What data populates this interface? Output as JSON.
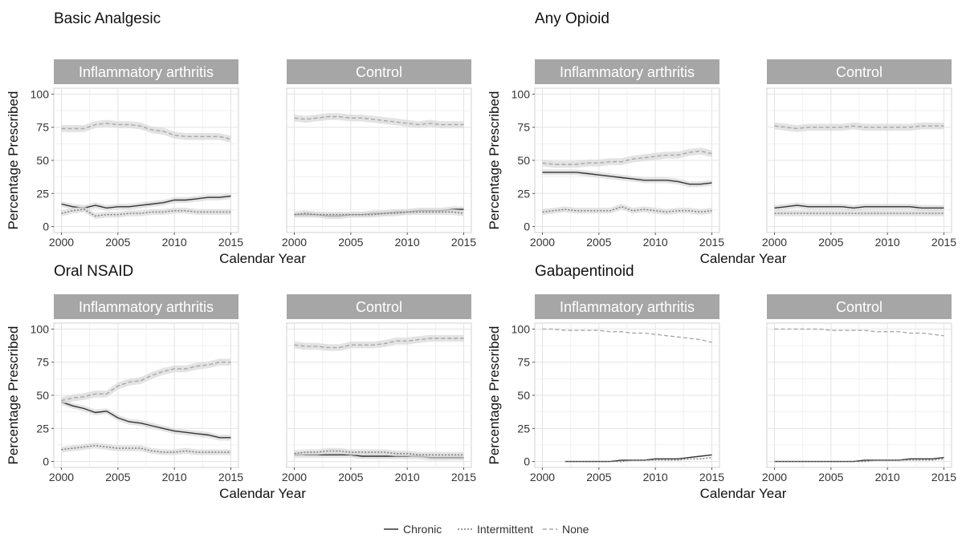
{
  "figure": {
    "ylabel": "Percentage Prescribed",
    "xlabel": "Calendar Year",
    "strip_labels": [
      "Inflammatory arthritis",
      "Control"
    ],
    "legend": [
      {
        "name": "Chronic",
        "style": "solid",
        "color": "#333333"
      },
      {
        "name": "Intermittent",
        "style": "dotted",
        "color": "#7a7a7a"
      },
      {
        "name": "None",
        "style": "dashed",
        "color": "#a8a8a8"
      }
    ],
    "colors": {
      "strip_bg": "#a6a6a6",
      "strip_text": "#ffffff",
      "grid": "#e3e3e3",
      "ribbon": "#d9d9d9"
    }
  },
  "chart_data": [
    {
      "title": "Basic Analgesic",
      "type": "line",
      "xlim": [
        2000,
        2015
      ],
      "ylim": [
        0,
        100
      ],
      "x_ticks": [
        2000,
        2005,
        2010,
        2015
      ],
      "y_ticks": [
        0,
        25,
        50,
        75,
        100
      ],
      "facets": [
        {
          "label": "Inflammatory arthritis",
          "x": [
            2000,
            2001,
            2002,
            2003,
            2004,
            2005,
            2006,
            2007,
            2008,
            2009,
            2010,
            2011,
            2012,
            2013,
            2014,
            2015
          ],
          "series": [
            {
              "name": "Chronic",
              "values": [
                17,
                15,
                14,
                16,
                14,
                15,
                15,
                16,
                17,
                18,
                20,
                20,
                21,
                22,
                22,
                23
              ]
            },
            {
              "name": "Intermittent",
              "values": [
                10,
                12,
                13,
                8,
                9,
                9,
                10,
                10,
                11,
                11,
                12,
                12,
                11,
                11,
                11,
                11
              ]
            },
            {
              "name": "None",
              "values": [
                74,
                74,
                74,
                77,
                78,
                77,
                77,
                76,
                73,
                72,
                69,
                68,
                68,
                68,
                68,
                66
              ]
            }
          ]
        },
        {
          "label": "Control",
          "x": [
            2000,
            2001,
            2002,
            2003,
            2004,
            2005,
            2006,
            2007,
            2008,
            2009,
            2010,
            2011,
            2012,
            2013,
            2014,
            2015
          ],
          "series": [
            {
              "name": "Chronic",
              "values": [
                9,
                9,
                9,
                8,
                8,
                9,
                9,
                10,
                10,
                11,
                11,
                12,
                12,
                12,
                13,
                13
              ]
            },
            {
              "name": "Intermittent",
              "values": [
                9,
                10,
                9,
                9,
                9,
                9,
                9,
                9,
                10,
                10,
                11,
                11,
                11,
                11,
                11,
                10
              ]
            },
            {
              "name": "None",
              "values": [
                82,
                81,
                82,
                83,
                83,
                82,
                82,
                81,
                80,
                79,
                78,
                77,
                78,
                77,
                77,
                77
              ]
            }
          ]
        }
      ]
    },
    {
      "title": "Any Opioid",
      "type": "line",
      "xlim": [
        2000,
        2015
      ],
      "ylim": [
        0,
        100
      ],
      "x_ticks": [
        2000,
        2005,
        2010,
        2015
      ],
      "y_ticks": [
        0,
        25,
        50,
        75,
        100
      ],
      "facets": [
        {
          "label": "Inflammatory arthritis",
          "x": [
            2000,
            2001,
            2002,
            2003,
            2004,
            2005,
            2006,
            2007,
            2008,
            2009,
            2010,
            2011,
            2012,
            2013,
            2014,
            2015
          ],
          "series": [
            {
              "name": "Chronic",
              "values": [
                41,
                41,
                41,
                41,
                40,
                39,
                38,
                37,
                36,
                35,
                35,
                35,
                34,
                32,
                32,
                33
              ]
            },
            {
              "name": "Intermittent",
              "values": [
                11,
                12,
                13,
                12,
                12,
                12,
                12,
                15,
                12,
                13,
                12,
                11,
                12,
                12,
                11,
                12
              ]
            },
            {
              "name": "None",
              "values": [
                48,
                47,
                47,
                47,
                48,
                48,
                49,
                49,
                51,
                52,
                53,
                54,
                54,
                56,
                57,
                55
              ]
            }
          ]
        },
        {
          "label": "Control",
          "x": [
            2000,
            2001,
            2002,
            2003,
            2004,
            2005,
            2006,
            2007,
            2008,
            2009,
            2010,
            2011,
            2012,
            2013,
            2014,
            2015
          ],
          "series": [
            {
              "name": "Chronic",
              "values": [
                14,
                15,
                16,
                15,
                15,
                15,
                15,
                14,
                15,
                15,
                15,
                15,
                15,
                14,
                14,
                14
              ]
            },
            {
              "name": "Intermittent",
              "values": [
                10,
                10,
                10,
                10,
                10,
                10,
                10,
                10,
                10,
                10,
                10,
                10,
                10,
                10,
                10,
                10
              ]
            },
            {
              "name": "None",
              "values": [
                76,
                75,
                74,
                75,
                75,
                75,
                75,
                76,
                75,
                75,
                75,
                75,
                75,
                76,
                76,
                76
              ]
            }
          ]
        }
      ]
    },
    {
      "title": "Oral NSAID",
      "type": "line",
      "xlim": [
        2000,
        2015
      ],
      "ylim": [
        0,
        100
      ],
      "x_ticks": [
        2000,
        2005,
        2010,
        2015
      ],
      "y_ticks": [
        0,
        25,
        50,
        75,
        100
      ],
      "facets": [
        {
          "label": "Inflammatory arthritis",
          "x": [
            2000,
            2001,
            2002,
            2003,
            2004,
            2005,
            2006,
            2007,
            2008,
            2009,
            2010,
            2011,
            2012,
            2013,
            2014,
            2015
          ],
          "series": [
            {
              "name": "Chronic",
              "values": [
                45,
                42,
                40,
                37,
                38,
                33,
                30,
                29,
                27,
                25,
                23,
                22,
                21,
                20,
                18,
                18
              ]
            },
            {
              "name": "Intermittent",
              "values": [
                9,
                10,
                11,
                12,
                11,
                10,
                10,
                10,
                8,
                7,
                7,
                8,
                7,
                7,
                7,
                7
              ]
            },
            {
              "name": "None",
              "values": [
                46,
                48,
                49,
                51,
                51,
                57,
                60,
                61,
                65,
                68,
                70,
                70,
                72,
                73,
                75,
                75
              ]
            }
          ]
        },
        {
          "label": "Control",
          "x": [
            2000,
            2001,
            2002,
            2003,
            2004,
            2005,
            2006,
            2007,
            2008,
            2009,
            2010,
            2011,
            2012,
            2013,
            2014,
            2015
          ],
          "series": [
            {
              "name": "Chronic",
              "values": [
                5,
                5,
                5,
                5,
                5,
                5,
                4,
                4,
                4,
                4,
                4,
                4,
                3,
                3,
                3,
                3
              ]
            },
            {
              "name": "Intermittent",
              "values": [
                6,
                7,
                7,
                8,
                8,
                7,
                7,
                7,
                7,
                6,
                6,
                5,
                5,
                5,
                5,
                5
              ]
            },
            {
              "name": "None",
              "values": [
                88,
                87,
                87,
                86,
                86,
                88,
                88,
                88,
                89,
                91,
                91,
                92,
                93,
                93,
                93,
                93
              ]
            }
          ]
        }
      ]
    },
    {
      "title": "Gabapentinoid",
      "type": "line",
      "xlim": [
        2000,
        2015
      ],
      "ylim": [
        0,
        100
      ],
      "x_ticks": [
        2000,
        2005,
        2010,
        2015
      ],
      "y_ticks": [
        0,
        25,
        50,
        75,
        100
      ],
      "facets": [
        {
          "label": "Inflammatory arthritis",
          "x": [
            2000,
            2001,
            2002,
            2003,
            2004,
            2005,
            2006,
            2007,
            2008,
            2009,
            2010,
            2011,
            2012,
            2013,
            2014,
            2015
          ],
          "series": [
            {
              "name": "Chronic",
              "x": [
                2002,
                2003,
                2004,
                2005,
                2006,
                2007,
                2008,
                2009,
                2010,
                2011,
                2012,
                2013,
                2014,
                2015
              ],
              "values": [
                0,
                0,
                0,
                0,
                0,
                1,
                1,
                1,
                2,
                2,
                2,
                3,
                4,
                5
              ]
            },
            {
              "name": "Intermittent",
              "x": [
                2002,
                2003,
                2004,
                2005,
                2006,
                2007,
                2008,
                2009,
                2010,
                2011,
                2012,
                2013,
                2014,
                2015
              ],
              "values": [
                0,
                0,
                0,
                0,
                0,
                0,
                1,
                1,
                1,
                1,
                1,
                2,
                2,
                3
              ]
            },
            {
              "name": "None",
              "values": [
                100,
                100,
                99,
                99,
                99,
                99,
                98,
                98,
                97,
                97,
                96,
                95,
                94,
                93,
                92,
                90
              ]
            }
          ]
        },
        {
          "label": "Control",
          "x": [
            2000,
            2001,
            2002,
            2003,
            2004,
            2005,
            2006,
            2007,
            2008,
            2009,
            2010,
            2011,
            2012,
            2013,
            2014,
            2015
          ],
          "series": [
            {
              "name": "Chronic",
              "values": [
                0,
                0,
                0,
                0,
                0,
                0,
                0,
                0,
                1,
                1,
                1,
                1,
                2,
                2,
                2,
                3
              ]
            },
            {
              "name": "Intermittent",
              "values": [
                0,
                0,
                0,
                0,
                0,
                0,
                0,
                0,
                0,
                1,
                1,
                1,
                1,
                1,
                1,
                2
              ]
            },
            {
              "name": "None",
              "values": [
                100,
                100,
                100,
                100,
                100,
                99,
                99,
                99,
                99,
                98,
                98,
                98,
                97,
                97,
                96,
                95
              ]
            }
          ]
        }
      ]
    }
  ]
}
